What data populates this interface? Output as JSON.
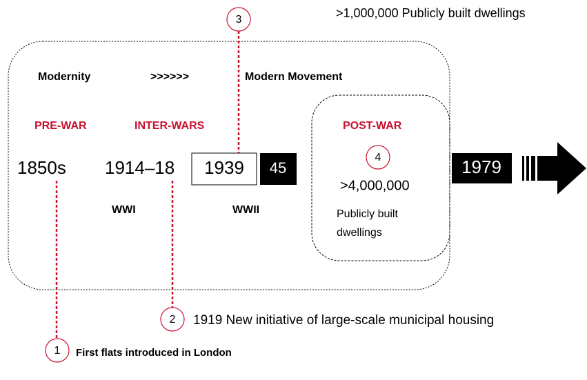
{
  "header": {
    "note": ">1,000,000 Publicly built dwellings"
  },
  "movement": {
    "left": "Modernity",
    "arrow": ">>>>>>",
    "right": "Modern Movement"
  },
  "periods": [
    "PRE-WAR",
    "INTER-WARS",
    "POST-WAR"
  ],
  "dates": [
    "1850s",
    "1914–18",
    "1939",
    "45",
    "1979"
  ],
  "wars": [
    "WWI",
    "WWII"
  ],
  "post_war": {
    "marker": "4",
    "count": ">4,000,000",
    "line1": "Publicly built",
    "line2": "dwellings"
  },
  "callouts": [
    {
      "marker": "1",
      "text": "First flats introduced in London"
    },
    {
      "marker": "2",
      "text": "1919 New initiative of large-scale municipal housing"
    },
    {
      "marker": "3"
    }
  ]
}
